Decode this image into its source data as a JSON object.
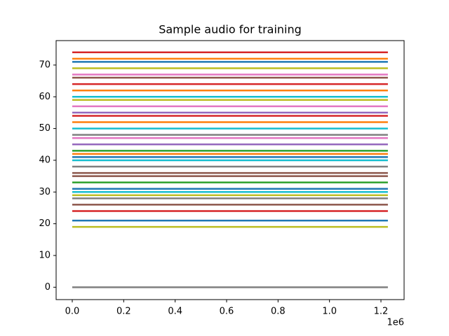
{
  "chart_data": {
    "type": "line",
    "title": "Sample audio for training",
    "xlim": [
      -62700,
      1290000
    ],
    "ylim": [
      -3.9,
      77.7
    ],
    "xticks": [
      {
        "value": 0,
        "label": "0.0"
      },
      {
        "value": 200000,
        "label": "0.2"
      },
      {
        "value": 400000,
        "label": "0.4"
      },
      {
        "value": 600000,
        "label": "0.6"
      },
      {
        "value": 800000,
        "label": "0.8"
      },
      {
        "value": 1000000,
        "label": "1.0"
      },
      {
        "value": 1200000,
        "label": "1.2"
      }
    ],
    "x_offset_label": "1e6",
    "yticks": [
      0,
      10,
      20,
      30,
      40,
      50,
      60,
      70
    ],
    "x": [
      0,
      1227000
    ],
    "series": [
      {
        "color": "#7f7f7f",
        "values": [
          0,
          0
        ]
      },
      {
        "color": "#bcbd22",
        "values": [
          19,
          19
        ]
      },
      {
        "color": "#1f77b4",
        "values": [
          21,
          21
        ]
      },
      {
        "color": "#d62728",
        "values": [
          24,
          24
        ]
      },
      {
        "color": "#8c564b",
        "values": [
          26,
          26
        ]
      },
      {
        "color": "#7f7f7f",
        "values": [
          28,
          28
        ]
      },
      {
        "color": "#bcbd22",
        "values": [
          29,
          29
        ]
      },
      {
        "color": "#17becf",
        "values": [
          30,
          30
        ]
      },
      {
        "color": "#1f77b4",
        "values": [
          31,
          31
        ]
      },
      {
        "color": "#2ca02c",
        "values": [
          33,
          33
        ]
      },
      {
        "color": "#8c564b",
        "values": [
          35,
          35
        ]
      },
      {
        "color": "#8c564b",
        "values": [
          36,
          36
        ]
      },
      {
        "color": "#7f7f7f",
        "values": [
          38,
          38
        ]
      },
      {
        "color": "#17becf",
        "values": [
          40,
          40
        ]
      },
      {
        "color": "#1f77b4",
        "values": [
          41,
          41
        ]
      },
      {
        "color": "#ff7f0e",
        "values": [
          42,
          42
        ]
      },
      {
        "color": "#2ca02c",
        "values": [
          43,
          43
        ]
      },
      {
        "color": "#9467bd",
        "values": [
          45,
          45
        ]
      },
      {
        "color": "#e377c2",
        "values": [
          47,
          47
        ]
      },
      {
        "color": "#7f7f7f",
        "values": [
          48,
          48
        ]
      },
      {
        "color": "#17becf",
        "values": [
          50,
          50
        ]
      },
      {
        "color": "#ff7f0e",
        "values": [
          52,
          52
        ]
      },
      {
        "color": "#d62728",
        "values": [
          54,
          54
        ]
      },
      {
        "color": "#9467bd",
        "values": [
          55,
          55
        ]
      },
      {
        "color": "#e377c2",
        "values": [
          57,
          57
        ]
      },
      {
        "color": "#bcbd22",
        "values": [
          59,
          59
        ]
      },
      {
        "color": "#17becf",
        "values": [
          60,
          60
        ]
      },
      {
        "color": "#ff7f0e",
        "values": [
          62,
          62
        ]
      },
      {
        "color": "#d62728",
        "values": [
          64,
          64
        ]
      },
      {
        "color": "#8c564b",
        "values": [
          66,
          66
        ]
      },
      {
        "color": "#e377c2",
        "values": [
          67,
          67
        ]
      },
      {
        "color": "#bcbd22",
        "values": [
          69,
          69
        ]
      },
      {
        "color": "#1f77b4",
        "values": [
          71,
          71
        ]
      },
      {
        "color": "#ff7f0e",
        "values": [
          72,
          72
        ]
      },
      {
        "color": "#d62728",
        "values": [
          74,
          74
        ]
      }
    ]
  }
}
